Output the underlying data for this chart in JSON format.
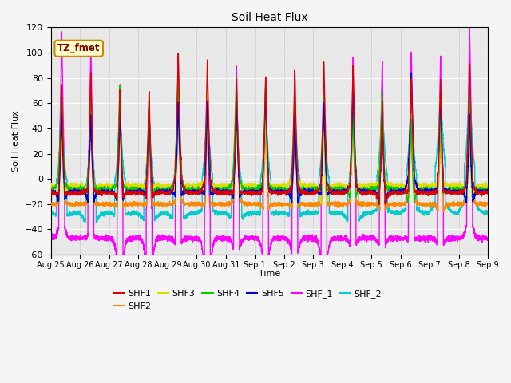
{
  "title": "Soil Heat Flux",
  "xlabel": "Time",
  "ylabel": "Soil Heat Flux",
  "ylim": [
    -60,
    120
  ],
  "yticks": [
    -60,
    -40,
    -20,
    0,
    20,
    40,
    60,
    80,
    100,
    120
  ],
  "x_labels": [
    "Aug 25",
    "Aug 26",
    "Aug 27",
    "Aug 28",
    "Aug 29",
    "Aug 30",
    "Aug 31",
    "Sep 1",
    "Sep 2",
    "Sep 3",
    "Sep 4",
    "Sep 5",
    "Sep 6",
    "Sep 7",
    "Sep 8",
    "Sep 9"
  ],
  "colors": {
    "SHF1": "#dd0000",
    "SHF2": "#ff8800",
    "SHF3": "#dddd00",
    "SHF4": "#00cc00",
    "SHF5": "#0000dd",
    "SHF_1": "#ff00ff",
    "SHF_2": "#00cccc"
  },
  "annotation_text": "TZ_fmet",
  "annotation_bg": "#ffffcc",
  "annotation_border": "#cc8800",
  "n_days": 15,
  "pts_per_day": 288
}
